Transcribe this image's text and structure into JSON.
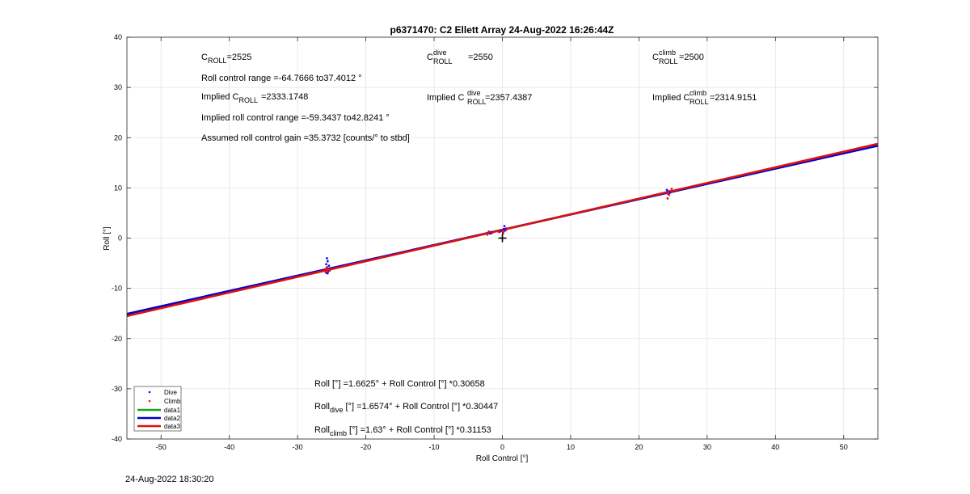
{
  "chart_data": {
    "type": "scatter",
    "title": "p6371470: C2 Ellett Array 24-Aug-2022 16:26:44Z",
    "xlabel": "Roll Control [°]",
    "ylabel": "Roll [°]",
    "xlim": [
      -55,
      55
    ],
    "ylim": [
      -40,
      40
    ],
    "xticks": [
      -50,
      -40,
      -30,
      -20,
      -10,
      0,
      10,
      20,
      30,
      40,
      50
    ],
    "yticks": [
      -40,
      -30,
      -20,
      -10,
      0,
      10,
      20,
      30,
      40
    ],
    "grid": true,
    "legend_position": "bottom-left",
    "fit_lines": [
      {
        "name": "data1",
        "color": "#1aa31a",
        "intercept": 1.6625,
        "slope": 0.30658
      },
      {
        "name": "data2",
        "color": "#0000cc",
        "intercept": 1.6574,
        "slope": 0.30447
      },
      {
        "name": "data3",
        "color": "#dd1111",
        "intercept": 1.63,
        "slope": 0.31153
      }
    ],
    "scatter_series": [
      {
        "name": "Dive",
        "color": "#1010ee",
        "points": [
          [
            -25.7,
            -4.0
          ],
          [
            -25.6,
            -4.6
          ],
          [
            -25.8,
            -5.2
          ],
          [
            -25.7,
            -5.8
          ],
          [
            -25.6,
            -6.1
          ],
          [
            -25.9,
            -6.3
          ],
          [
            -25.5,
            -6.6
          ],
          [
            -25.8,
            -6.9
          ],
          [
            -25.6,
            -7.0
          ],
          [
            -25.4,
            -5.5
          ],
          [
            -1.8,
            0.9
          ],
          [
            -1.6,
            1.2
          ],
          [
            0.3,
            2.4
          ],
          [
            0.2,
            1.8
          ],
          [
            0.4,
            1.5
          ],
          [
            -0.2,
            1.4
          ],
          [
            0.5,
            1.9
          ],
          [
            0.1,
            1.1
          ],
          [
            24.2,
            8.9
          ],
          [
            24.3,
            9.3
          ],
          [
            24.5,
            9.0
          ],
          [
            24.1,
            9.6
          ],
          [
            24.6,
            9.2
          ]
        ]
      },
      {
        "name": "Climb",
        "color": "#ee1010",
        "points": [
          [
            -25.8,
            -6.1
          ],
          [
            -25.6,
            -6.4
          ],
          [
            -25.9,
            -6.7
          ],
          [
            -25.7,
            -5.9
          ],
          [
            -25.5,
            -6.3
          ],
          [
            -25.3,
            -6.5
          ],
          [
            -26.0,
            -6.2
          ],
          [
            -2.2,
            0.7
          ],
          [
            -2.0,
            1.3
          ],
          [
            -1.5,
            1.0
          ],
          [
            -0.4,
            1.2
          ],
          [
            0.2,
            1.4
          ],
          [
            0.6,
            1.7
          ],
          [
            -0.6,
            1.3
          ],
          [
            0.8,
            1.9
          ],
          [
            0.1,
            0.9
          ],
          [
            24.0,
            9.1
          ],
          [
            24.4,
            8.6
          ],
          [
            24.6,
            9.4
          ],
          [
            24.2,
            7.9
          ],
          [
            24.8,
            9.8
          ],
          [
            24.3,
            9.0
          ]
        ]
      }
    ],
    "origin_marker": [
      0,
      0
    ],
    "annotations": {
      "croll_base": "C",
      "croll_sub": "ROLL",
      "croll_value": "=2525",
      "croll_dive_base": "C",
      "croll_dive_sup": "dive",
      "croll_dive_sub": "ROLL",
      "croll_dive_value": "=2550",
      "croll_climb_base": "C",
      "croll_climb_sup": "climb",
      "croll_climb_sub": "ROLL",
      "croll_climb_value": "=2500",
      "control_range": "Roll control range =-64.7666 to37.4012 °",
      "implied_prefix": "Implied C",
      "implied_sub": "ROLL",
      "implied_value": "=2333.1748",
      "implied_dive_prefix": "Implied C",
      "implied_dive_sup": "dive",
      "implied_dive_sub": "ROLL",
      "implied_dive_value": "=2357.4387",
      "implied_climb_prefix": "Implied C",
      "implied_climb_sup": "climb",
      "implied_climb_sub": "ROLL",
      "implied_climb_value": "=2314.9151",
      "implied_range": "Implied roll control range =-59.3437 to42.8241 °",
      "gain": "Assumed roll control gain =35.3732 [counts/° to stbd]",
      "eq_all": "Roll [°] =1.6625° + Roll Control [°] *0.30658",
      "eq_dive_base": "Roll",
      "eq_dive_sub": "dive",
      "eq_dive_rest": " [°] =1.6574° + Roll Control [°] *0.30447",
      "eq_climb_base": "Roll",
      "eq_climb_sub": "climb",
      "eq_climb_rest": " [°] =1.63° + Roll Control [°] *0.31153"
    }
  },
  "footer": {
    "timestamp": "24-Aug-2022 18:30:20"
  }
}
